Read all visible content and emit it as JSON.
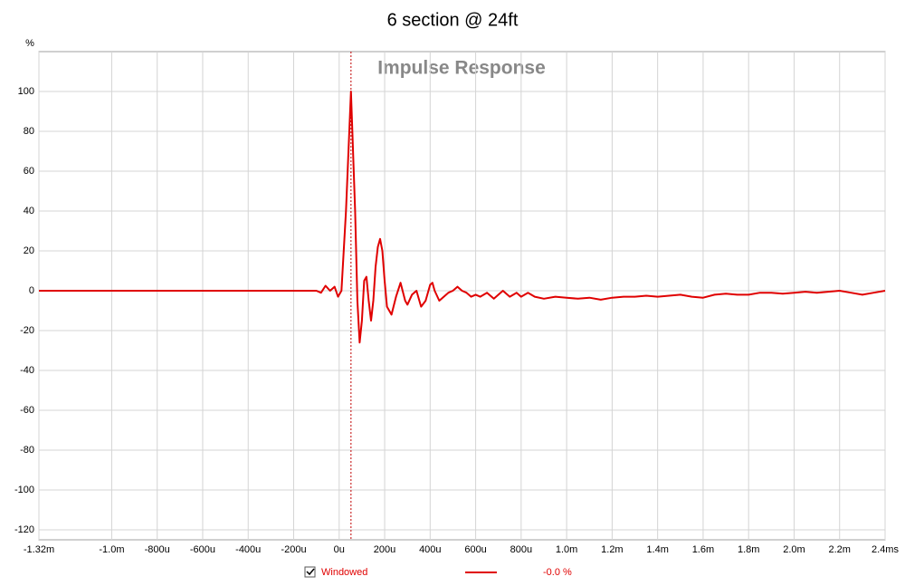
{
  "chart_data": {
    "type": "line",
    "title": "6 section @ 24ft",
    "subtitle": "Impulse Response",
    "y_label": "%",
    "legend_value": "-0.0 %",
    "marker_x": 52,
    "xlim": [
      -1320,
      2400
    ],
    "ylim": [
      -125,
      120
    ],
    "grid": true,
    "xticks": [
      {
        "value": -1320,
        "label": "-1.32m"
      },
      {
        "value": -1000,
        "label": "-1.0m"
      },
      {
        "value": -800,
        "label": "-800u"
      },
      {
        "value": -600,
        "label": "-600u"
      },
      {
        "value": -400,
        "label": "-400u"
      },
      {
        "value": -200,
        "label": "-200u"
      },
      {
        "value": 0,
        "label": "0u"
      },
      {
        "value": 200,
        "label": "200u"
      },
      {
        "value": 400,
        "label": "400u"
      },
      {
        "value": 600,
        "label": "600u"
      },
      {
        "value": 800,
        "label": "800u"
      },
      {
        "value": 1000,
        "label": "1.0m"
      },
      {
        "value": 1200,
        "label": "1.2m"
      },
      {
        "value": 1400,
        "label": "1.4m"
      },
      {
        "value": 1600,
        "label": "1.6m"
      },
      {
        "value": 1800,
        "label": "1.8m"
      },
      {
        "value": 2000,
        "label": "2.0m"
      },
      {
        "value": 2200,
        "label": "2.2m"
      },
      {
        "value": 2400,
        "label": "2.4ms"
      }
    ],
    "yticks": [
      -120,
      -100,
      -80,
      -60,
      -40,
      -20,
      0,
      20,
      40,
      60,
      80,
      100
    ],
    "x": [
      -1320,
      -1000,
      -600,
      -200,
      -100,
      -80,
      -60,
      -40,
      -20,
      -5,
      10,
      30,
      52,
      70,
      80,
      90,
      100,
      110,
      120,
      130,
      140,
      150,
      160,
      170,
      180,
      190,
      200,
      210,
      230,
      250,
      270,
      290,
      300,
      320,
      340,
      360,
      380,
      400,
      410,
      420,
      440,
      460,
      480,
      500,
      520,
      540,
      560,
      580,
      600,
      620,
      650,
      680,
      700,
      720,
      750,
      780,
      800,
      830,
      860,
      900,
      950,
      1000,
      1050,
      1100,
      1150,
      1200,
      1250,
      1300,
      1350,
      1400,
      1450,
      1500,
      1550,
      1600,
      1650,
      1700,
      1750,
      1800,
      1850,
      1900,
      1950,
      2000,
      2050,
      2100,
      2150,
      2200,
      2250,
      2300,
      2350,
      2400
    ],
    "series": [
      {
        "name": "Windowed",
        "color": "#e00000",
        "values": [
          0,
          0,
          0,
          0,
          0,
          -1,
          2.5,
          0,
          2,
          -3,
          0,
          40,
          100,
          40,
          -5,
          -26,
          -15,
          5,
          7,
          -5,
          -15,
          -5,
          12,
          22,
          26,
          20,
          5,
          -8,
          -12,
          -3,
          4,
          -5,
          -7,
          -2,
          0,
          -8,
          -5,
          3,
          4,
          0,
          -5,
          -3,
          -1,
          0,
          2,
          0,
          -1,
          -3,
          -2,
          -3,
          -1,
          -4,
          -2,
          0,
          -3,
          -1,
          -3,
          -1,
          -3,
          -4,
          -3,
          -3.5,
          -4,
          -3.5,
          -4.5,
          -3.5,
          -3,
          -3,
          -2.5,
          -3,
          -2.5,
          -2,
          -3,
          -3.5,
          -2,
          -1.5,
          -2,
          -2,
          -1,
          -1,
          -1.5,
          -1,
          -0.5,
          -1,
          -0.5,
          0,
          -1,
          -2,
          -1,
          0
        ]
      }
    ]
  }
}
